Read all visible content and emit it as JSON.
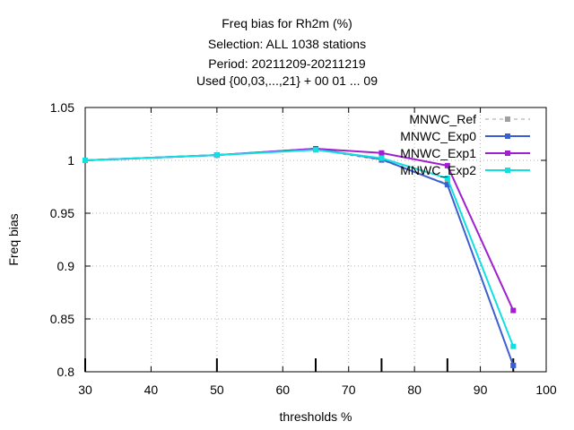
{
  "chart_data": {
    "type": "line",
    "title_lines": [
      "Freq bias  for Rh2m (%)",
      "Selection: ALL    1038 stations",
      "Period: 20211209-20211219",
      "Used {00,03,...,21} + 00 01 ... 09"
    ],
    "xlabel": "thresholds %",
    "ylabel": "Freq bias",
    "xlim": [
      30,
      100
    ],
    "ylim": [
      0.8,
      1.05
    ],
    "xticks": [
      30,
      40,
      50,
      60,
      70,
      80,
      90,
      100
    ],
    "yticks": [
      0.8,
      0.85,
      0.9,
      0.95,
      1,
      1.05
    ],
    "xtick_labels": [
      "30",
      "40",
      "50",
      "60",
      "70",
      "80",
      "90",
      "100"
    ],
    "ytick_labels": [
      "0.8",
      "0.85",
      "0.9",
      "0.95",
      "1",
      "1.05"
    ],
    "grid": true,
    "legend_position": "top-right",
    "threshold_markers": [
      30,
      50,
      65,
      75,
      85,
      95
    ],
    "series": [
      {
        "name": "MNWC_Ref",
        "color": "#a0a0a0",
        "dashed": true,
        "x": [
          30,
          50,
          65,
          75,
          85,
          95
        ],
        "y": [
          1.0,
          1.005,
          1.01,
          1.0,
          0.978,
          0.806
        ]
      },
      {
        "name": "MNWC_Exp0",
        "color": "#3b5fd1",
        "dashed": false,
        "x": [
          30,
          50,
          65,
          75,
          85,
          95
        ],
        "y": [
          1.0,
          1.005,
          1.011,
          1.001,
          0.977,
          0.806
        ]
      },
      {
        "name": "MNWC_Exp1",
        "color": "#a020d0",
        "dashed": false,
        "x": [
          30,
          50,
          65,
          75,
          85,
          95
        ],
        "y": [
          1.0,
          1.005,
          1.011,
          1.007,
          0.995,
          0.858
        ]
      },
      {
        "name": "MNWC_Exp2",
        "color": "#10e0e0",
        "dashed": false,
        "x": [
          30,
          50,
          65,
          75,
          85,
          95
        ],
        "y": [
          1.0,
          1.005,
          1.01,
          1.002,
          0.983,
          0.824
        ]
      }
    ]
  }
}
